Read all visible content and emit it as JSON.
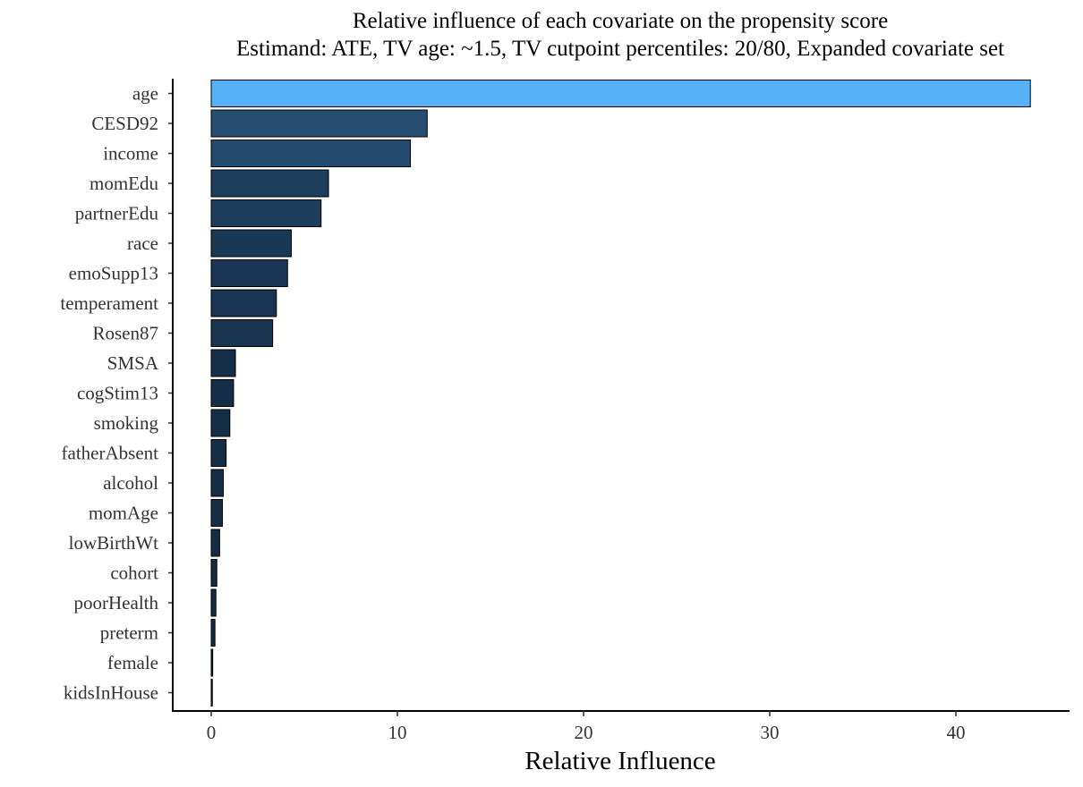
{
  "chart_data": {
    "type": "bar",
    "orientation": "horizontal",
    "title": "Relative influence of each covariate on the propensity score",
    "subtitle": "Estimand: ATE, TV age: ~1.5, TV cutpoint percentiles: 20/80, Expanded covariate set",
    "xlabel": "Relative Influence",
    "ylabel": "",
    "xlim": [
      0,
      45
    ],
    "x_ticks": [
      0,
      10,
      20,
      30,
      40
    ],
    "grid": false,
    "legend": "none",
    "categories": [
      "age",
      "CESD92",
      "income",
      "momEdu",
      "partnerEdu",
      "race",
      "emoSupp13",
      "temperament",
      "Rosen87",
      "SMSA",
      "cogStim13",
      "smoking",
      "fatherAbsent",
      "alcohol",
      "momAge",
      "lowBirthWt",
      "cohort",
      "poorHealth",
      "preterm",
      "female",
      "kidsInHouse"
    ],
    "values": [
      44.0,
      11.6,
      10.7,
      6.3,
      5.9,
      4.3,
      4.1,
      3.5,
      3.3,
      1.3,
      1.2,
      1.0,
      0.8,
      0.65,
      0.6,
      0.45,
      0.3,
      0.25,
      0.2,
      0.08,
      0.06
    ],
    "color_scale": {
      "low": "#132b43",
      "high": "#56b1f7"
    },
    "bar_outline_color": "#000000"
  }
}
